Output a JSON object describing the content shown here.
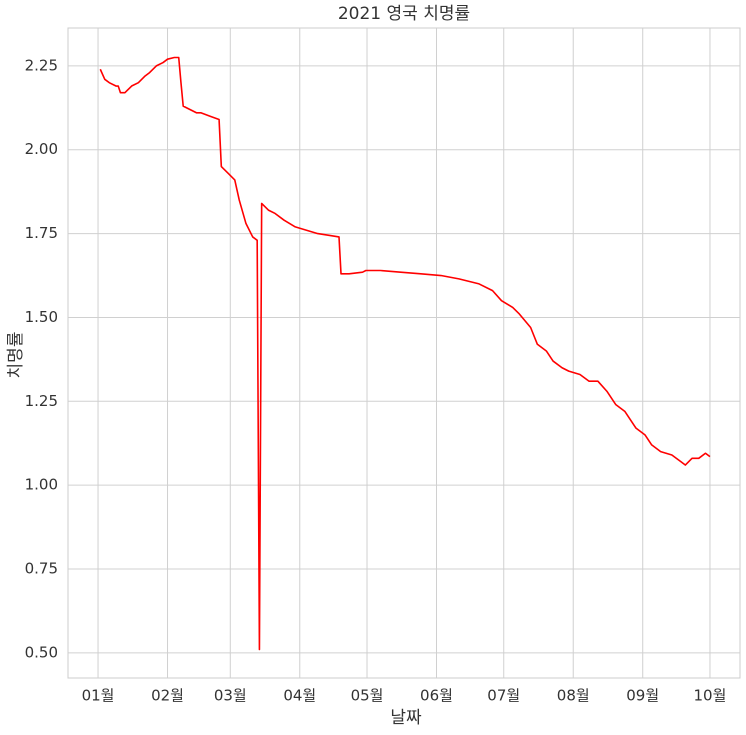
{
  "chart_data": {
    "type": "line",
    "title": "2021 영국 치명률",
    "x_label": "날짜",
    "y_label": "치명률",
    "series": [
      {
        "name": "치명률",
        "color": "#ff0000",
        "x": [
          1,
          3,
          5,
          8,
          9,
          10,
          12,
          15,
          18,
          21,
          23,
          26,
          29,
          31,
          34,
          36,
          37,
          38,
          41,
          44,
          46,
          50,
          54,
          55,
          58,
          61,
          63,
          66,
          69,
          71,
          72,
          73,
          76,
          79,
          83,
          88,
          93,
          98,
          103,
          107.5,
          108.4,
          112,
          118,
          119.5,
          126,
          135,
          144,
          153,
          161,
          170,
          176,
          180,
          185,
          188,
          193,
          196,
          200,
          203,
          207,
          210,
          215,
          219,
          223,
          227,
          231,
          235,
          240,
          244,
          247,
          251,
          256,
          260,
          262,
          265,
          268,
          271,
          273
        ],
        "values": [
          2.24,
          2.21,
          2.2,
          2.19,
          2.19,
          2.17,
          2.17,
          2.19,
          2.2,
          2.22,
          2.23,
          2.25,
          2.26,
          2.27,
          2.275,
          2.275,
          2.2,
          2.13,
          2.12,
          2.11,
          2.11,
          2.1,
          2.09,
          1.95,
          1.93,
          1.91,
          1.85,
          1.78,
          1.74,
          1.73,
          0.51,
          1.84,
          1.82,
          1.81,
          1.79,
          1.77,
          1.76,
          1.75,
          1.745,
          1.74,
          1.63,
          1.63,
          1.635,
          1.64,
          1.64,
          1.635,
          1.63,
          1.625,
          1.615,
          1.6,
          1.58,
          1.55,
          1.53,
          1.51,
          1.47,
          1.42,
          1.4,
          1.37,
          1.35,
          1.34,
          1.33,
          1.31,
          1.31,
          1.28,
          1.24,
          1.22,
          1.17,
          1.15,
          1.12,
          1.1,
          1.09,
          1.07,
          1.06,
          1.08,
          1.08,
          1.095,
          1.085
        ]
      }
    ],
    "xlim": [
      -13.4,
      286.4
    ],
    "xticks": [
      {
        "value": 0,
        "label": "01월"
      },
      {
        "value": 31,
        "label": "02월"
      },
      {
        "value": 59,
        "label": "03월"
      },
      {
        "value": 90,
        "label": "04월"
      },
      {
        "value": 120,
        "label": "05월"
      },
      {
        "value": 151,
        "label": "06월"
      },
      {
        "value": 181,
        "label": "07월"
      },
      {
        "value": 212,
        "label": "08월"
      },
      {
        "value": 243,
        "label": "09월"
      },
      {
        "value": 273,
        "label": "10월"
      }
    ],
    "ylim": [
      0.425,
      2.363
    ],
    "yticks": [
      {
        "value": 0.5,
        "label": "0.50"
      },
      0.75,
      {
        "value": 1,
        "label": "1.00"
      },
      1.25,
      {
        "value": 1.5,
        "label": "1.50"
      },
      1.75,
      {
        "value": 2,
        "label": "2.00"
      },
      2.25
    ],
    "grid": true
  }
}
